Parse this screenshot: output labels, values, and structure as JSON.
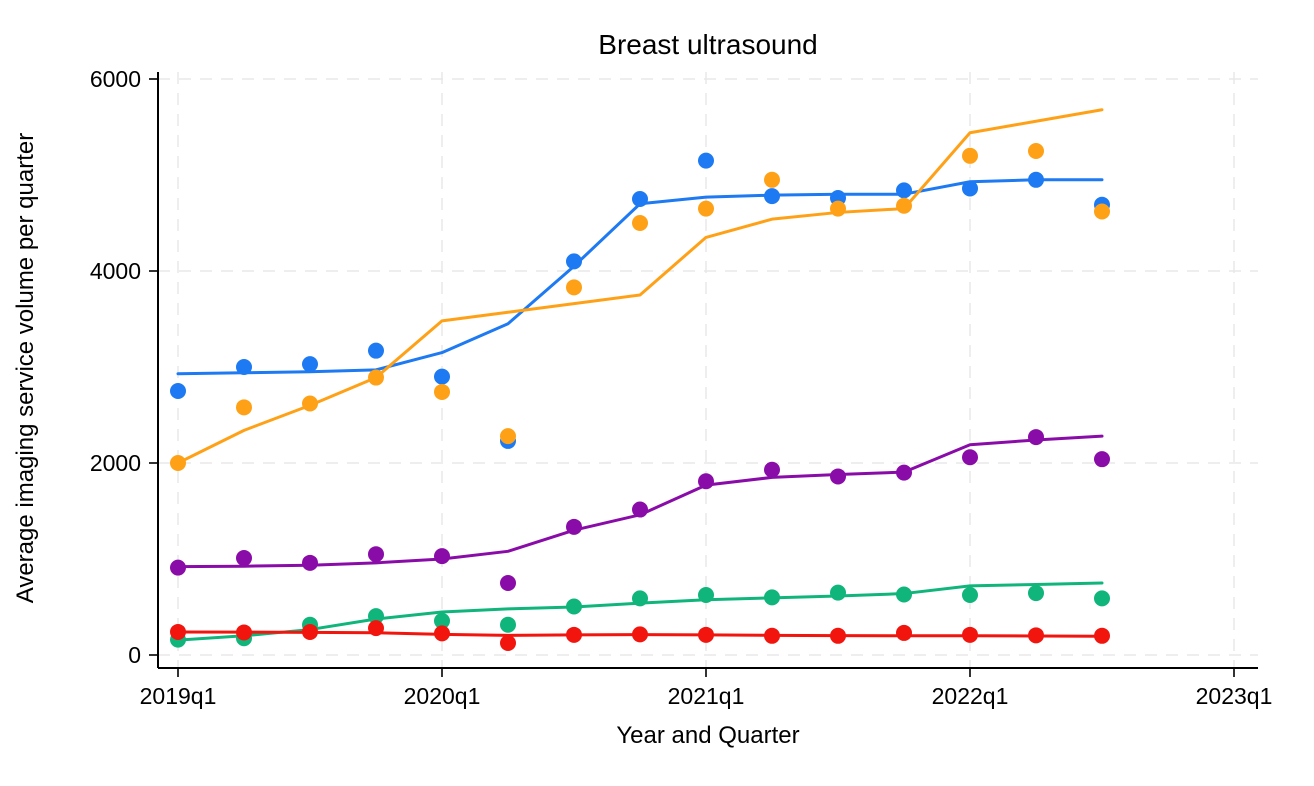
{
  "title": "Breast ultrasound",
  "x_axis": {
    "label": "Year and Quarter",
    "tick_labels": [
      "2019q1",
      "2020q1",
      "2021q1",
      "2022q1",
      "2023q1"
    ]
  },
  "y_axis": {
    "label": "Average imaging service volume per quarter",
    "tick_labels": [
      "0",
      "2000",
      "4000",
      "6000"
    ],
    "tick_values": [
      0,
      2000,
      4000,
      6000
    ]
  },
  "chart_data": {
    "type": "scatter",
    "subtype": "scatter points with lowess trend lines, Stata style, no legend",
    "title": "Breast ultrasound",
    "xlabel": "Year and Quarter",
    "ylabel": "Average imaging service volume per quarter",
    "ylim": [
      0,
      6000
    ],
    "x_axis_range": [
      "2019q1",
      "2023q1"
    ],
    "grid": true,
    "x": [
      "2019q1",
      "2019q2",
      "2019q3",
      "2019q4",
      "2020q1",
      "2020q2",
      "2020q3",
      "2020q4",
      "2021q1",
      "2021q2",
      "2021q3",
      "2021q4",
      "2022q1",
      "2022q2",
      "2022q3"
    ],
    "series": [
      {
        "name": "series-blue",
        "color": "#1d7af2",
        "scatter": [
          2750,
          3000,
          3030,
          3170,
          2900,
          2230,
          4100,
          4750,
          5150,
          4780,
          4760,
          4840,
          4860,
          4950,
          4690
        ],
        "trend": [
          2930,
          2940,
          2950,
          2970,
          3150,
          3450,
          4050,
          4700,
          4770,
          4790,
          4800,
          4800,
          4930,
          4950,
          4950
        ]
      },
      {
        "name": "series-green",
        "color": "#10b57c",
        "scatter": [
          160,
          175,
          315,
          405,
          355,
          315,
          505,
          590,
          625,
          600,
          650,
          630,
          625,
          645,
          590
        ],
        "trend": [
          155,
          200,
          265,
          375,
          448,
          480,
          500,
          540,
          575,
          595,
          615,
          640,
          720,
          735,
          750
        ]
      },
      {
        "name": "series-purple",
        "color": "#8a0ca8",
        "scatter": [
          910,
          1010,
          960,
          1050,
          1030,
          750,
          1335,
          1515,
          1810,
          1930,
          1860,
          1900,
          2060,
          2270,
          2040
        ],
        "trend": [
          920,
          925,
          935,
          960,
          1000,
          1080,
          1300,
          1460,
          1770,
          1850,
          1880,
          1905,
          2190,
          2240,
          2280
        ]
      },
      {
        "name": "series-red",
        "color": "#f2150e",
        "scatter": [
          240,
          235,
          240,
          280,
          225,
          125,
          210,
          215,
          210,
          200,
          200,
          230,
          210,
          205,
          200
        ],
        "trend": [
          240,
          238,
          236,
          232,
          215,
          205,
          210,
          212,
          210,
          205,
          202,
          200,
          200,
          198,
          195
        ]
      },
      {
        "name": "series-orange",
        "color": "#ffa117",
        "scatter": [
          2000,
          2580,
          2620,
          2890,
          2740,
          2280,
          3830,
          4500,
          4650,
          4950,
          4650,
          4680,
          5200,
          5250,
          4620
        ],
        "trend": [
          2000,
          2340,
          2600,
          2890,
          3480,
          3570,
          3660,
          3750,
          4350,
          4540,
          4610,
          4650,
          5440,
          5560,
          5680
        ]
      }
    ]
  }
}
